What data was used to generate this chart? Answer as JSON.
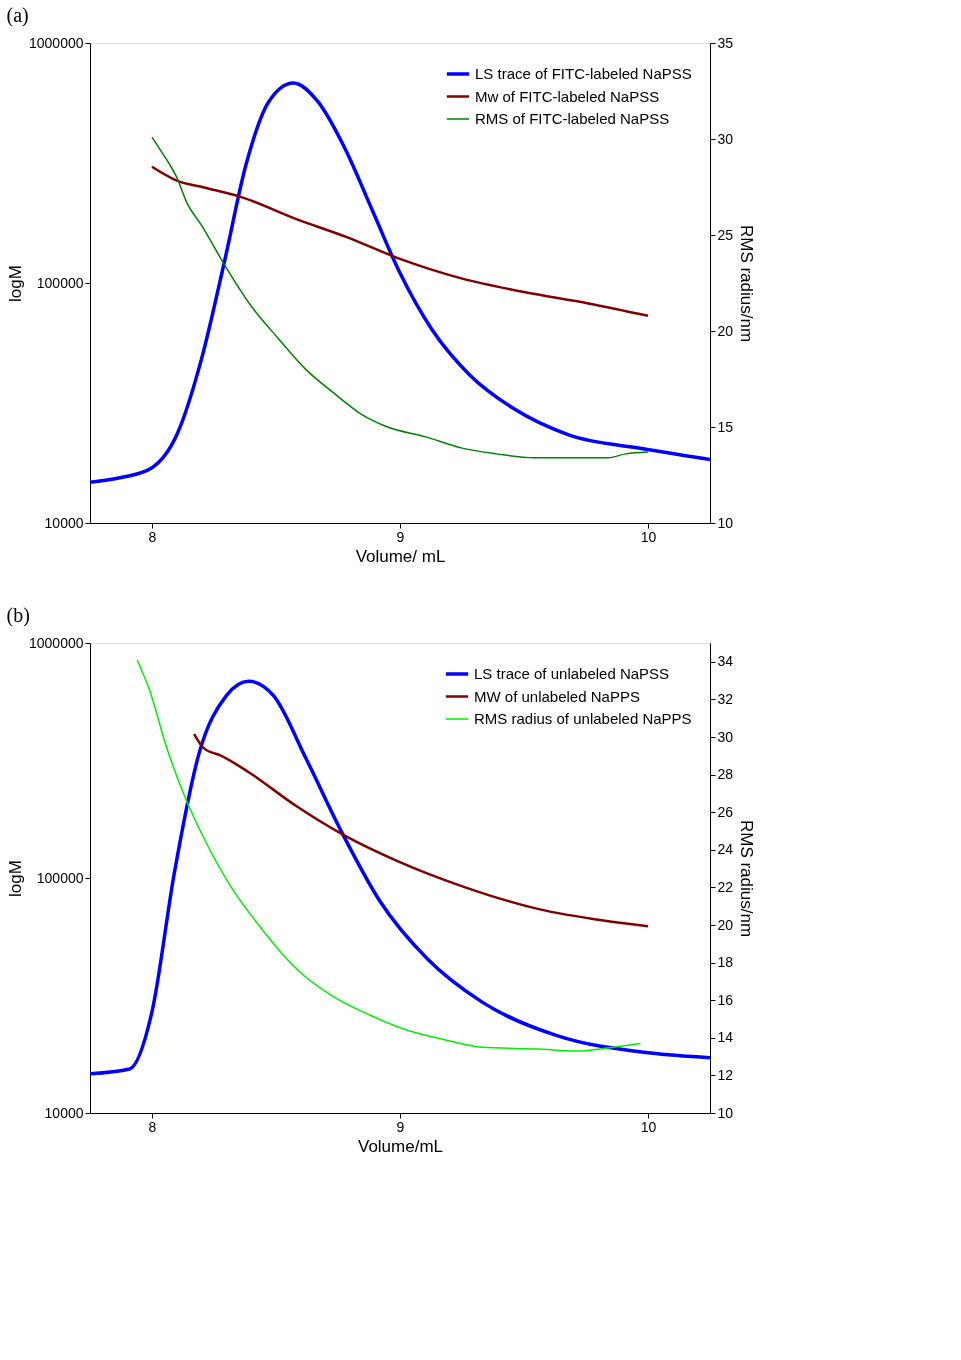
{
  "chart_data": [
    {
      "type": "line",
      "title": "(a)",
      "xlabel": "Volume/ mL",
      "ylabel": "logM",
      "y2label": "RMS radius/nm",
      "log": "y",
      "legend": "top right",
      "grid": false,
      "marker": "none",
      "line_style": "solid",
      "xlim": [
        7.75,
        10.25
      ],
      "xticks": [
        8,
        9,
        10
      ],
      "ylim": [
        10000,
        1000000
      ],
      "yticks": [
        10000,
        100000,
        1000000
      ],
      "y2lim": [
        10,
        35
      ],
      "y2ticks": [
        10,
        15,
        20,
        25,
        30,
        35
      ],
      "series": [
        {
          "name": "LS trace of FITC-labeled NaPSS",
          "color": "#0000ff",
          "x": [
            7.75,
            7.88,
            8.0,
            8.1,
            8.2,
            8.29,
            8.38,
            8.47,
            8.57,
            8.67,
            8.78,
            8.89,
            9.0,
            9.13,
            9.28,
            9.46,
            9.68,
            9.98,
            10.25
          ],
          "values": [
            14800,
            15500,
            17000,
            23300,
            48400,
            120000,
            314000,
            568000,
            682000,
            568000,
            360000,
            199000,
            110000,
            63700,
            41500,
            29900,
            23300,
            20400,
            18400
          ]
        },
        {
          "name": "Mw of FITC-labeled NaPSS",
          "color": "#800000",
          "x": [
            8.0,
            8.1,
            8.21,
            8.36,
            8.58,
            8.78,
            9.0,
            9.24,
            9.5,
            9.76,
            10.0
          ],
          "values": [
            305000,
            267000,
            250000,
            228000,
            185000,
            156000,
            126000,
            105000,
            91700,
            82200,
            73000
          ]
        },
        {
          "name": "RMS of FITC-labeled NaPSS",
          "color": "#008000",
          "axis": "y2",
          "x": [
            8.0,
            8.03,
            8.07,
            8.1,
            8.14,
            8.2,
            8.29,
            8.4,
            8.51,
            8.62,
            8.73,
            8.84,
            8.95,
            9.1,
            9.25,
            9.39,
            9.54,
            9.69,
            9.84,
            9.91,
            10.0
          ],
          "values": [
            30.1,
            29.5,
            28.7,
            28.0,
            26.7,
            25.5,
            23.5,
            21.3,
            19.6,
            18.0,
            16.8,
            15.7,
            15.0,
            14.5,
            13.9,
            13.6,
            13.4,
            13.4,
            13.4,
            13.6,
            13.7
          ]
        }
      ]
    },
    {
      "type": "line",
      "title": "(b)",
      "xlabel": "Volume/mL",
      "ylabel": "logM",
      "y2label": "RMS radius/nm",
      "log": "y",
      "legend": "top right",
      "grid": false,
      "marker": "none",
      "line_style": "solid",
      "xlim": [
        7.75,
        10.25
      ],
      "xticks": [
        8,
        9,
        10
      ],
      "ylim": [
        10000,
        1000000
      ],
      "yticks": [
        10000,
        100000,
        1000000
      ],
      "y2lim": [
        10,
        35
      ],
      "y2ticks": [
        10,
        12,
        14,
        16,
        18,
        20,
        22,
        24,
        26,
        28,
        30,
        32,
        34
      ],
      "series": [
        {
          "name": "LS trace of unlabeled NaPSS",
          "color": "#0000ff",
          "x": [
            7.75,
            7.91,
            8.0,
            8.09,
            8.19,
            8.3,
            8.39,
            8.49,
            8.62,
            8.77,
            8.92,
            9.11,
            9.33,
            9.63,
            10.01,
            10.25
          ],
          "values": [
            14700,
            15400,
            27000,
            105000,
            340000,
            597000,
            687000,
            597000,
            324000,
            153000,
            79400,
            45300,
            29700,
            21400,
            18000,
            17200
          ]
        },
        {
          "name": "MW of unlabeled NaPPS",
          "color": "#800000",
          "x": [
            8.17,
            8.21,
            8.28,
            8.39,
            8.58,
            8.77,
            8.99,
            9.26,
            9.56,
            9.82,
            10.0
          ],
          "values": [
            410000,
            356000,
            331000,
            282000,
            203000,
            153000,
            118000,
            91500,
            73700,
            65900,
            62300
          ]
        },
        {
          "name": "RMS radius of unlabeled NaPPS",
          "color": "#00ee00",
          "axis": "y2",
          "x": [
            7.94,
            7.99,
            8.06,
            8.13,
            8.21,
            8.32,
            8.43,
            8.58,
            8.73,
            8.88,
            9.03,
            9.18,
            9.33,
            9.56,
            9.71,
            9.86,
            9.97
          ],
          "values": [
            34.1,
            32.5,
            29.4,
            26.9,
            24.6,
            22.0,
            20.0,
            17.7,
            16.2,
            15.2,
            14.4,
            13.9,
            13.5,
            13.4,
            13.3,
            13.5,
            13.7
          ]
        }
      ]
    }
  ]
}
